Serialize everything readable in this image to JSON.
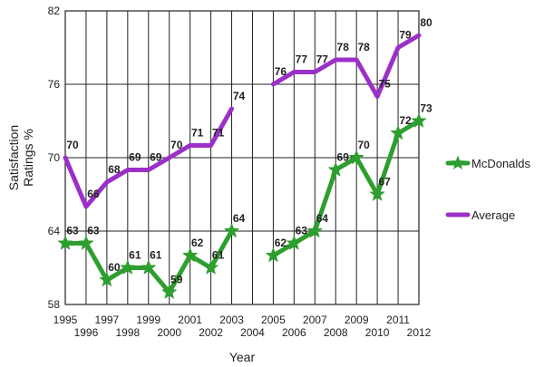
{
  "chart_data": {
    "type": "line",
    "title": "",
    "xlabel": "Year",
    "ylabel": "Satisfaction Ratings %",
    "ylim": [
      58,
      82
    ],
    "yticks": [
      58,
      64,
      70,
      76,
      82
    ],
    "xlim": [
      1995,
      2012
    ],
    "xticks": [
      1995,
      1996,
      1997,
      1998,
      1999,
      2000,
      2001,
      2002,
      2003,
      2004,
      2005,
      2006,
      2007,
      2008,
      2009,
      2010,
      2011,
      2012
    ],
    "grid": "on",
    "legend": "right",
    "series": [
      {
        "name": "McDonalds",
        "color": "#2e9e2e",
        "marker": "star",
        "points": [
          {
            "x": 1995,
            "y": 63
          },
          {
            "x": 1996,
            "y": 63
          },
          {
            "x": 1997,
            "y": 60
          },
          {
            "x": 1998,
            "y": 61
          },
          {
            "x": 1999,
            "y": 61
          },
          {
            "x": 2000,
            "y": 59
          },
          {
            "x": 2001,
            "y": 62
          },
          {
            "x": 2002,
            "y": 61
          },
          {
            "x": 2003,
            "y": 64
          },
          {
            "x": 2004,
            "y": null
          },
          {
            "x": 2005,
            "y": 62
          },
          {
            "x": 2006,
            "y": 63
          },
          {
            "x": 2007,
            "y": 64
          },
          {
            "x": 2008,
            "y": 69
          },
          {
            "x": 2009,
            "y": 70
          },
          {
            "x": 2010,
            "y": 67
          },
          {
            "x": 2011,
            "y": 72
          },
          {
            "x": 2012,
            "y": 73
          }
        ]
      },
      {
        "name": "Average",
        "color": "#9b30c8",
        "marker": "none",
        "points": [
          {
            "x": 1995,
            "y": 70
          },
          {
            "x": 1996,
            "y": 66
          },
          {
            "x": 1997,
            "y": 68
          },
          {
            "x": 1998,
            "y": 69
          },
          {
            "x": 1999,
            "y": 69
          },
          {
            "x": 2000,
            "y": 70
          },
          {
            "x": 2001,
            "y": 71
          },
          {
            "x": 2002,
            "y": 71
          },
          {
            "x": 2003,
            "y": 74
          },
          {
            "x": 2004,
            "y": null
          },
          {
            "x": 2005,
            "y": 76
          },
          {
            "x": 2006,
            "y": 77
          },
          {
            "x": 2007,
            "y": 77
          },
          {
            "x": 2008,
            "y": 78
          },
          {
            "x": 2009,
            "y": 78
          },
          {
            "x": 2010,
            "y": 75
          },
          {
            "x": 2011,
            "y": 79
          },
          {
            "x": 2012,
            "y": 80
          }
        ]
      }
    ]
  }
}
